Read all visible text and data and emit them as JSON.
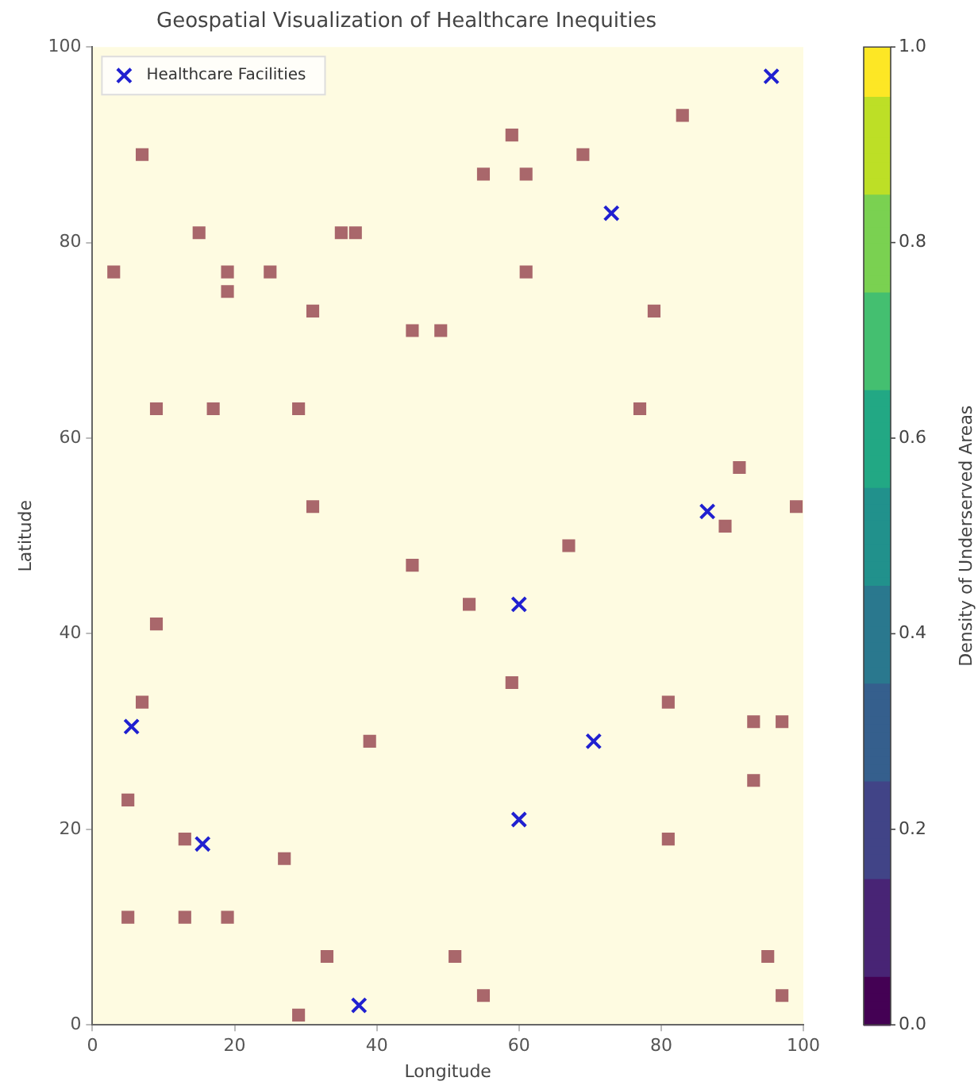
{
  "chart_data": {
    "type": "scatter",
    "title": "Geospatial Visualization of Healthcare Inequities",
    "xlabel": "Longitude",
    "ylabel": "Latitude",
    "clabel": "Density of Underserved Areas",
    "clim": [
      0,
      1
    ],
    "cticks": [
      {
        "value": 0,
        "label": "0.0"
      },
      {
        "value": 0.2,
        "label": "0.2"
      },
      {
        "value": 0.4,
        "label": "0.4"
      },
      {
        "value": 0.6,
        "label": "0.6"
      },
      {
        "value": 0.8,
        "label": "0.8"
      },
      {
        "value": 1,
        "label": "1.0"
      }
    ],
    "xlim": [
      0,
      100
    ],
    "ylim": [
      0,
      100
    ],
    "xticks": [
      0,
      20,
      40,
      60,
      80,
      100
    ],
    "yticks": [
      0,
      20,
      40,
      60,
      80,
      100
    ],
    "grid": false,
    "legend": "top left",
    "series": [
      {
        "color": "#a9676b",
        "marker": "square",
        "x": [
          3,
          7,
          15,
          19,
          19,
          25,
          9,
          17,
          29,
          31,
          35,
          37,
          45,
          49,
          31,
          55,
          59,
          61,
          61,
          69,
          83,
          79,
          77,
          91,
          89,
          99,
          67,
          45,
          53,
          9,
          59,
          7,
          39,
          81,
          93,
          97,
          93,
          5,
          13,
          81,
          27,
          5,
          13,
          19,
          33,
          51,
          55,
          29,
          95,
          97
        ],
        "values": [
          77,
          89,
          81,
          77,
          75,
          77,
          63,
          63,
          63,
          73,
          81,
          81,
          71,
          71,
          53,
          87,
          91,
          87,
          77,
          89,
          93,
          73,
          63,
          57,
          51,
          53,
          49,
          47,
          43,
          41,
          35,
          33,
          29,
          33,
          31,
          31,
          25,
          23,
          19,
          19,
          17,
          11,
          11,
          11,
          7,
          7,
          3,
          1,
          7,
          3
        ]
      },
      {
        "name": "Healthcare Facilities",
        "color": "#2020d0",
        "marker": "cross",
        "x": [
          95.5,
          73,
          86.5,
          60,
          70.5,
          60,
          5.5,
          15.5,
          37.5
        ],
        "values": [
          97,
          83,
          52.5,
          43,
          29,
          21,
          30.5,
          18.5,
          2
        ]
      }
    ]
  }
}
